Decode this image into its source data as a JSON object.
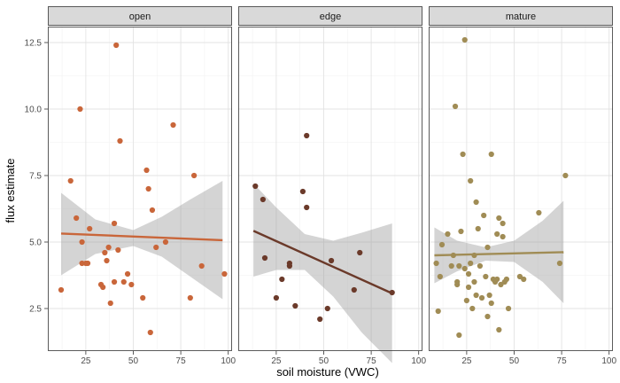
{
  "chart_data": {
    "type": "scatter",
    "xlabel": "soil moisture (VWC)",
    "ylabel": "flux estimate",
    "xlim": [
      5,
      102
    ],
    "ylim": [
      0.9,
      13.1
    ],
    "x_ticks": [
      25,
      50,
      75,
      100
    ],
    "y_ticks": [
      2.5,
      5.0,
      7.5,
      10.0,
      12.5
    ],
    "y_tick_labels": [
      "2.5",
      "5.0",
      "7.5",
      "10.0",
      "12.5"
    ],
    "grid": true,
    "legend": "none",
    "panels": [
      {
        "name": "open",
        "color": "#c9663a",
        "fit": {
          "x": [
            12,
            97
          ],
          "y": [
            5.32,
            5.07
          ]
        },
        "band_upper": [
          [
            12,
            6.85
          ],
          [
            30,
            5.85
          ],
          [
            50,
            5.45
          ],
          [
            65,
            5.95
          ],
          [
            80,
            6.6
          ],
          [
            97,
            7.3
          ]
        ],
        "band_lower": [
          [
            12,
            3.75
          ],
          [
            30,
            4.55
          ],
          [
            50,
            4.85
          ],
          [
            65,
            4.45
          ],
          [
            80,
            3.7
          ],
          [
            97,
            2.85
          ]
        ],
        "points": [
          [
            12,
            3.2
          ],
          [
            17,
            7.3
          ],
          [
            20,
            5.9
          ],
          [
            22,
            10.0
          ],
          [
            23,
            5.0
          ],
          [
            23,
            4.2
          ],
          [
            25,
            4.2
          ],
          [
            26,
            4.2
          ],
          [
            27,
            5.5
          ],
          [
            33,
            3.4
          ],
          [
            34,
            3.3
          ],
          [
            35,
            4.6
          ],
          [
            36,
            4.3
          ],
          [
            37,
            4.8
          ],
          [
            38,
            2.7
          ],
          [
            40,
            5.7
          ],
          [
            40,
            3.5
          ],
          [
            41,
            12.4
          ],
          [
            42,
            4.7
          ],
          [
            43,
            8.8
          ],
          [
            45,
            3.5
          ],
          [
            47,
            3.8
          ],
          [
            49,
            3.4
          ],
          [
            55,
            2.9
          ],
          [
            57,
            7.7
          ],
          [
            58,
            7.0
          ],
          [
            59,
            1.6
          ],
          [
            60,
            6.2
          ],
          [
            62,
            4.8
          ],
          [
            67,
            5.0
          ],
          [
            71,
            9.4
          ],
          [
            80,
            2.9
          ],
          [
            82,
            7.5
          ],
          [
            86,
            4.1
          ],
          [
            98,
            3.8
          ]
        ]
      },
      {
        "name": "edge",
        "color": "#6b3a2a",
        "fit": {
          "x": [
            13,
            86
          ],
          "y": [
            5.42,
            3.07
          ]
        },
        "band_upper": [
          [
            13,
            7.2
          ],
          [
            25,
            6.3
          ],
          [
            40,
            5.3
          ],
          [
            55,
            5.05
          ],
          [
            70,
            5.35
          ],
          [
            86,
            5.7
          ]
        ],
        "band_lower": [
          [
            13,
            3.7
          ],
          [
            25,
            3.95
          ],
          [
            40,
            3.95
          ],
          [
            55,
            2.95
          ],
          [
            70,
            1.6
          ],
          [
            86,
            0.45
          ]
        ],
        "points": [
          [
            14,
            7.1
          ],
          [
            18,
            6.6
          ],
          [
            19,
            4.4
          ],
          [
            25,
            2.9
          ],
          [
            28,
            3.6
          ],
          [
            32,
            4.1
          ],
          [
            32,
            4.2
          ],
          [
            35,
            2.6
          ],
          [
            39,
            6.9
          ],
          [
            41,
            9.0
          ],
          [
            41,
            6.3
          ],
          [
            48,
            2.1
          ],
          [
            52,
            2.5
          ],
          [
            54,
            4.3
          ],
          [
            66,
            3.2
          ],
          [
            69,
            4.6
          ],
          [
            86,
            3.1
          ]
        ]
      },
      {
        "name": "mature",
        "color": "#a08c55",
        "fit": {
          "x": [
            8,
            76
          ],
          "y": [
            4.5,
            4.62
          ]
        },
        "band_upper": [
          [
            8,
            5.55
          ],
          [
            20,
            5.05
          ],
          [
            35,
            4.8
          ],
          [
            50,
            5.05
          ],
          [
            65,
            5.8
          ],
          [
            76,
            6.55
          ]
        ],
        "band_lower": [
          [
            8,
            3.45
          ],
          [
            20,
            3.9
          ],
          [
            35,
            4.3
          ],
          [
            50,
            4.25
          ],
          [
            65,
            3.5
          ],
          [
            76,
            2.7
          ]
        ],
        "points": [
          [
            9,
            4.2
          ],
          [
            10,
            2.4
          ],
          [
            11,
            3.7
          ],
          [
            12,
            4.9
          ],
          [
            15,
            5.3
          ],
          [
            17,
            4.1
          ],
          [
            18,
            4.5
          ],
          [
            19,
            10.1
          ],
          [
            20,
            3.5
          ],
          [
            20,
            3.4
          ],
          [
            21,
            1.5
          ],
          [
            21,
            4.1
          ],
          [
            22,
            5.4
          ],
          [
            23,
            8.3
          ],
          [
            24,
            12.6
          ],
          [
            24,
            4.0
          ],
          [
            25,
            2.8
          ],
          [
            26,
            3.3
          ],
          [
            26,
            3.8
          ],
          [
            27,
            7.3
          ],
          [
            27,
            4.2
          ],
          [
            28,
            2.5
          ],
          [
            29,
            3.5
          ],
          [
            29,
            4.5
          ],
          [
            30,
            6.5
          ],
          [
            30,
            3.0
          ],
          [
            31,
            5.5
          ],
          [
            32,
            4.1
          ],
          [
            33,
            2.9
          ],
          [
            34,
            6.0
          ],
          [
            35,
            3.7
          ],
          [
            36,
            2.2
          ],
          [
            36,
            4.8
          ],
          [
            37,
            3.0
          ],
          [
            38,
            8.3
          ],
          [
            38,
            2.7
          ],
          [
            39,
            3.6
          ],
          [
            40,
            3.5
          ],
          [
            41,
            5.3
          ],
          [
            41,
            3.6
          ],
          [
            42,
            1.7
          ],
          [
            42,
            5.9
          ],
          [
            43,
            3.4
          ],
          [
            44,
            5.2
          ],
          [
            44,
            5.7
          ],
          [
            45,
            3.5
          ],
          [
            46,
            3.6
          ],
          [
            47,
            2.5
          ],
          [
            53,
            3.7
          ],
          [
            55,
            3.6
          ],
          [
            63,
            6.1
          ],
          [
            74,
            4.2
          ],
          [
            77,
            7.5
          ]
        ]
      }
    ]
  }
}
